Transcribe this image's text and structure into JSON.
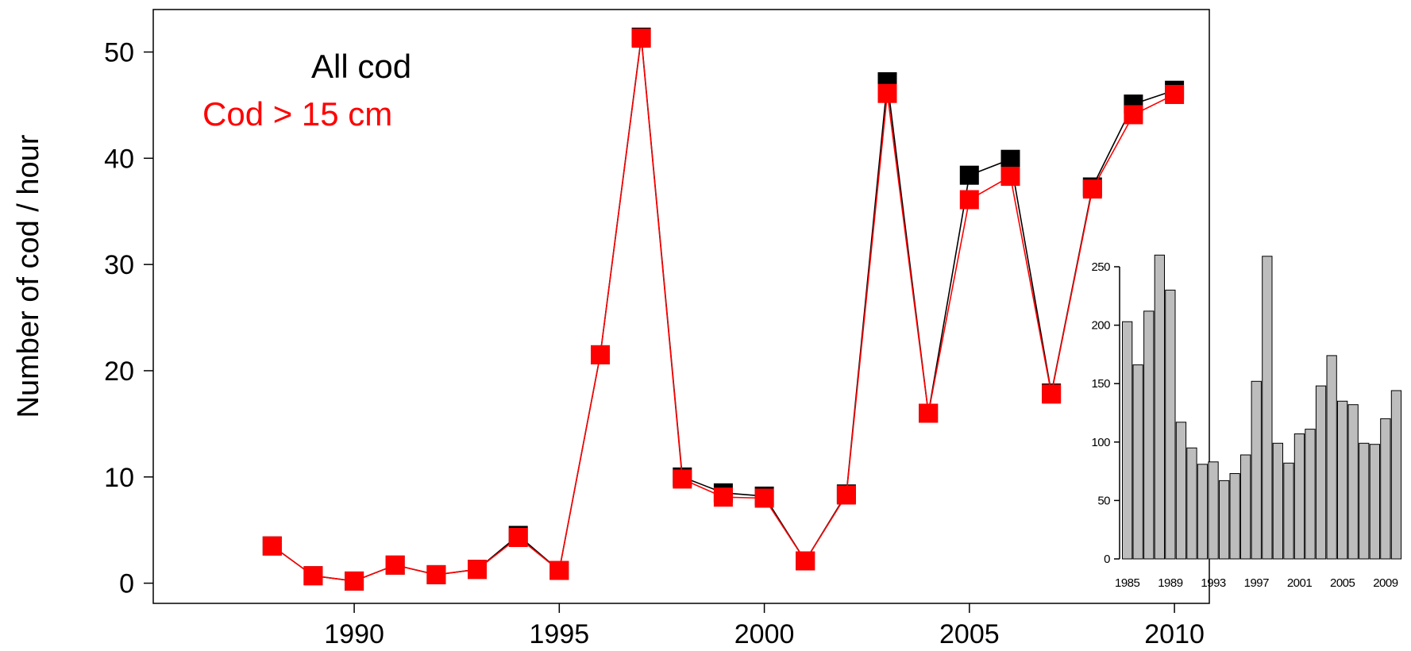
{
  "chart_data": [
    {
      "type": "line",
      "title": "",
      "xlabel": "",
      "ylabel": "Number of cod / hour",
      "xlim": [
        1985.1,
        2010.85
      ],
      "ylim": [
        -1.9,
        54.0
      ],
      "x_ticks": [
        1990,
        1995,
        2000,
        2005,
        2010
      ],
      "y_ticks": [
        0,
        10,
        20,
        30,
        40,
        50
      ],
      "legend": {
        "placement": "top-left",
        "entries": [
          "All cod",
          "Cod > 15 cm"
        ]
      },
      "grid": false,
      "colors": {
        "all_cod": "#000000",
        "cod_gt_15": "#ff0000"
      },
      "x": [
        1988,
        1989,
        1990,
        1991,
        1992,
        1993,
        1994,
        1995,
        1996,
        1997,
        1998,
        1999,
        2000,
        2001,
        2002,
        2003,
        2004,
        2005,
        2006,
        2007,
        2008,
        2009,
        2010
      ],
      "series": [
        {
          "name": "All cod",
          "color": "#000000",
          "values": [
            3.5,
            0.7,
            0.2,
            1.7,
            0.8,
            1.3,
            4.5,
            1.2,
            21.5,
            51.4,
            10.0,
            8.5,
            8.2,
            2.1,
            8.4,
            47.2,
            16.0,
            38.4,
            39.9,
            17.9,
            37.3,
            45.1,
            46.4
          ]
        },
        {
          "name": "Cod > 15 cm",
          "color": "#ff0000",
          "values": [
            3.5,
            0.7,
            0.2,
            1.7,
            0.8,
            1.3,
            4.3,
            1.2,
            21.5,
            51.3,
            9.8,
            8.1,
            8.0,
            2.1,
            8.3,
            46.1,
            16.0,
            36.1,
            38.3,
            17.8,
            37.1,
            44.1,
            46.0
          ]
        }
      ]
    },
    {
      "type": "bar",
      "title": "",
      "xlabel": "",
      "ylabel": "",
      "ylim": [
        0,
        250
      ],
      "y_ticks": [
        0,
        50,
        100,
        150,
        200,
        250
      ],
      "x_tick_labels": [
        "1985",
        "1989",
        "1993",
        "1997",
        "2001",
        "2005",
        "2009"
      ],
      "bar_color": "#bdbdbd",
      "categories": [
        1985,
        1986,
        1987,
        1988,
        1989,
        1990,
        1991,
        1992,
        1993,
        1994,
        1995,
        1996,
        1997,
        1998,
        1999,
        2000,
        2001,
        2002,
        2003,
        2004,
        2005,
        2006,
        2007,
        2008,
        2009,
        2010
      ],
      "values": [
        203,
        166,
        212,
        260,
        230,
        117,
        95,
        81,
        83,
        67,
        73,
        89,
        152,
        259,
        99,
        82,
        107,
        111,
        148,
        174,
        135,
        132,
        99,
        98,
        120,
        144
      ]
    }
  ]
}
